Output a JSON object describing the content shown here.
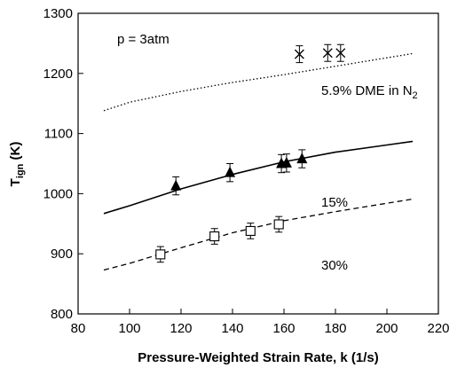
{
  "chart_data": {
    "type": "scatter",
    "xlabel": "Pressure-Weighted Strain Rate, k (1/s)",
    "ylabel_main": "T",
    "ylabel_sub": "ign",
    "ylabel_unit": " (K)",
    "xlim": [
      80,
      220
    ],
    "ylim": [
      800,
      1300
    ],
    "xticks": [
      80,
      100,
      120,
      140,
      160,
      180,
      200,
      220
    ],
    "yticks": [
      800,
      900,
      1000,
      1100,
      1200,
      1300
    ],
    "grid": false,
    "annotations": {
      "pressure": "p = 3atm",
      "dme5_main": "5.9% DME in N",
      "dme5_sub": "2",
      "dme15": "15%",
      "dme30": "30%"
    },
    "series": [
      {
        "key": "5.9",
        "marker": "x-star",
        "points": [
          [
            166,
            1232
          ],
          [
            177,
            1234
          ],
          [
            182,
            1234
          ]
        ],
        "err": 14,
        "line_style": "dotted",
        "line": [
          [
            90,
            1138
          ],
          [
            100,
            1152
          ],
          [
            120,
            1170
          ],
          [
            140,
            1185
          ],
          [
            160,
            1198
          ],
          [
            180,
            1212
          ],
          [
            200,
            1226
          ],
          [
            210,
            1233
          ]
        ]
      },
      {
        "key": "15",
        "marker": "triangle",
        "points": [
          [
            118,
            1013
          ],
          [
            139,
            1035
          ],
          [
            159,
            1050
          ],
          [
            161,
            1051
          ],
          [
            167,
            1058
          ]
        ],
        "err": 15,
        "line_style": "solid",
        "line": [
          [
            90,
            967
          ],
          [
            100,
            980
          ],
          [
            120,
            1008
          ],
          [
            140,
            1032
          ],
          [
            160,
            1053
          ],
          [
            180,
            1069
          ],
          [
            200,
            1081
          ],
          [
            210,
            1087
          ]
        ]
      },
      {
        "key": "30",
        "marker": "square",
        "points": [
          [
            112,
            899
          ],
          [
            133,
            929
          ],
          [
            147,
            938
          ],
          [
            158,
            949
          ]
        ],
        "err": 13,
        "line_style": "dashed",
        "line": [
          [
            90,
            873
          ],
          [
            100,
            884
          ],
          [
            120,
            910
          ],
          [
            140,
            935
          ],
          [
            160,
            955
          ],
          [
            180,
            970
          ],
          [
            200,
            984
          ],
          [
            210,
            991
          ]
        ]
      }
    ]
  }
}
